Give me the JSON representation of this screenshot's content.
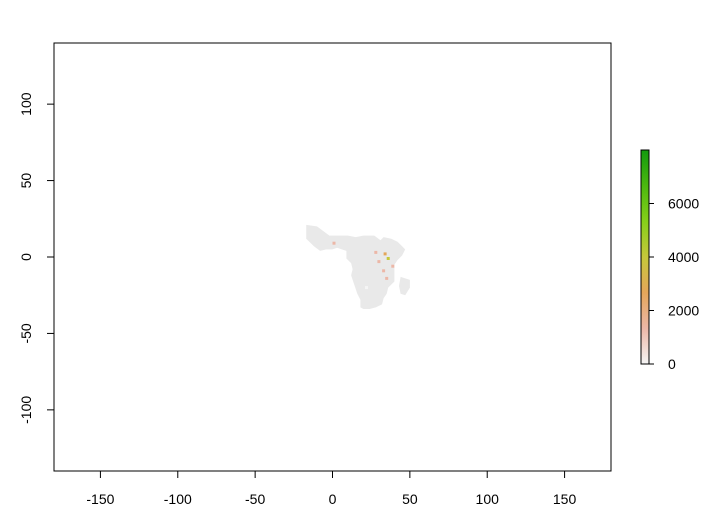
{
  "chart_data": {
    "type": "heatmap",
    "subtype": "raster-map",
    "xlim": [
      -180,
      180
    ],
    "ylim": [
      -140,
      140
    ],
    "x_ticks": [
      -150,
      -100,
      -50,
      0,
      50,
      100,
      150
    ],
    "y_ticks": [
      100,
      50,
      0,
      -50,
      -100
    ],
    "x_tick_labels": [
      "-150",
      "-100",
      "-50",
      "0",
      "50",
      "100",
      "150"
    ],
    "y_tick_labels": [
      "100",
      "50",
      "0",
      "-50",
      "-100"
    ],
    "legend": {
      "placement": "right",
      "range": [
        0,
        8000
      ],
      "ticks": [
        0,
        2000,
        4000,
        6000
      ],
      "tick_labels": [
        "0",
        "2000",
        "4000",
        "6000"
      ],
      "colors": [
        "#f5f5f5",
        "#ecb7a7",
        "#e4a65a",
        "#c6c83a",
        "#86cf19",
        "#4bb80f",
        "#139a0e"
      ]
    },
    "map_background_color": "#e9e9e9",
    "hotspots": [
      {
        "lon": 34,
        "lat": 2,
        "value": 3000
      },
      {
        "lon": 36,
        "lat": -1,
        "value": 4500
      },
      {
        "lon": 30,
        "lat": -3,
        "value": 1500
      },
      {
        "lon": 28,
        "lat": 3,
        "value": 1000
      },
      {
        "lon": 1,
        "lat": 9,
        "value": 1200
      },
      {
        "lon": 33,
        "lat": -9,
        "value": 900
      },
      {
        "lon": 35,
        "lat": -14,
        "value": 700
      },
      {
        "lon": 39,
        "lat": -6,
        "value": 1100
      },
      {
        "lon": 22,
        "lat": -20,
        "value": 500
      }
    ]
  }
}
